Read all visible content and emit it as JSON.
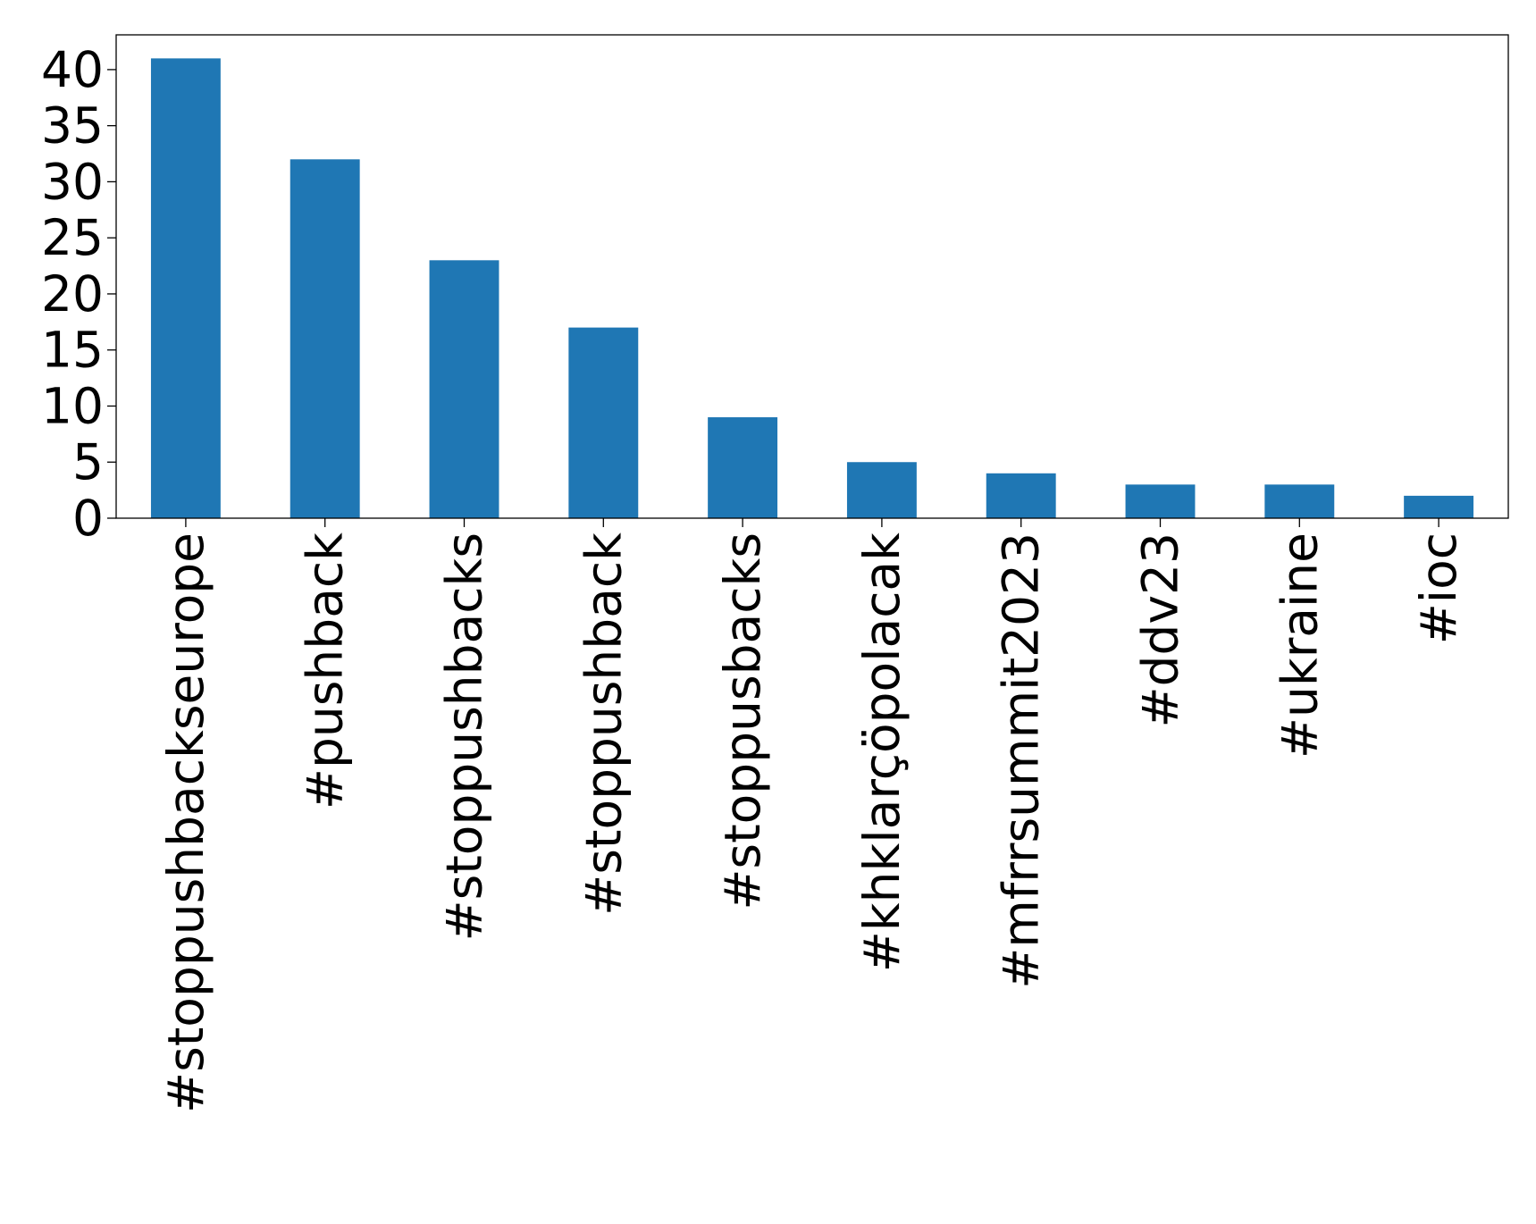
{
  "chart_data": {
    "type": "bar",
    "title": "",
    "xlabel": "",
    "ylabel": "",
    "categories": [
      "#stoppushbackseurope",
      "#pushback",
      "#stoppushbacks",
      "#stoppushback",
      "#stoppusbacks",
      "#khklarçöpolacak",
      "#mfrrsummit2023",
      "#ddv23",
      "#ukraine",
      "#ioc"
    ],
    "values": [
      41,
      32,
      23,
      17,
      9,
      5,
      4,
      3,
      3,
      2
    ],
    "ylim": [
      0,
      43.1
    ],
    "yticks": [
      0,
      5,
      10,
      15,
      20,
      25,
      30,
      35,
      40
    ],
    "grid": false,
    "legend": "none",
    "bar_color": "#1f77b4"
  }
}
